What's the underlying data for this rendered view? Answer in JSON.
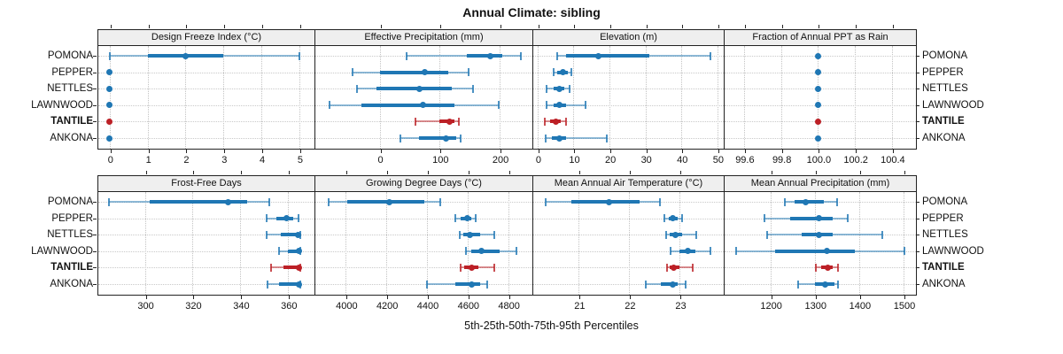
{
  "title": "Annual Climate: sibling",
  "caption": "5th-25th-50th-75th-95th Percentiles",
  "sites": [
    "POMONA",
    "PEPPER",
    "NETTLES",
    "LAWNWOOD",
    "TANTILE",
    "ANKONA"
  ],
  "highlight_site": "TANTILE",
  "colors": {
    "series": "#1f77b4",
    "highlight": "#bc2026",
    "strip_bg": "#efefef",
    "grid": "#c6c6c6",
    "border": "#222222"
  },
  "chart_data": {
    "type": "dotplot",
    "note": "trellis dot plot of 5th-25th-50th-75th-95th percentiles per site",
    "percentile_labels": [
      "5th",
      "25th",
      "50th",
      "75th",
      "95th"
    ],
    "rows": [
      "POMONA",
      "PEPPER",
      "NETTLES",
      "LAWNWOOD",
      "TANTILE",
      "ANKONA"
    ],
    "legend_position": "none",
    "grid": true,
    "panels": [
      {
        "title": "Design Freeze Index (°C)",
        "grid_row": 0,
        "grid_col": 0,
        "xlim": [
          -0.3,
          5.4
        ],
        "ticks": [
          0,
          1,
          2,
          3,
          4,
          5
        ],
        "tick_labels": [
          "0",
          "1",
          "2",
          "3",
          "4",
          "5"
        ],
        "values": {
          "POMONA": [
            0,
            1,
            2,
            3,
            5
          ],
          "PEPPER": [
            0,
            0,
            0,
            0,
            0
          ],
          "NETTLES": [
            0,
            0,
            0,
            0,
            0
          ],
          "LAWNWOOD": [
            0,
            0,
            0,
            0,
            0
          ],
          "TANTILE": [
            0,
            0,
            0,
            0,
            0
          ],
          "ANKONA": [
            0,
            0,
            0,
            0,
            0
          ]
        }
      },
      {
        "title": "Effective Precipitation (mm)",
        "grid_row": 0,
        "grid_col": 1,
        "xlim": [
          -107,
          253
        ],
        "ticks": [
          0,
          100,
          200
        ],
        "tick_labels": [
          "0",
          "100",
          "200"
        ],
        "values": {
          "POMONA": [
            45,
            145,
            185,
            205,
            235
          ],
          "PEPPER": [
            -45,
            0,
            75,
            115,
            148
          ],
          "NETTLES": [
            -37,
            -5,
            67,
            120,
            156
          ],
          "LAWNWOOD": [
            -84,
            -30,
            72,
            125,
            199
          ],
          "TANTILE": [
            59,
            100,
            116,
            124,
            132
          ],
          "ANKONA": [
            35,
            65,
            110,
            128,
            135
          ]
        }
      },
      {
        "title": "Elevation (m)",
        "grid_row": 0,
        "grid_col": 2,
        "xlim": [
          -1.2,
          51.5
        ],
        "ticks": [
          0,
          10,
          20,
          30,
          40,
          50
        ],
        "tick_labels": [
          "0",
          "10",
          "20",
          "30",
          "40",
          "50"
        ],
        "values": {
          "POMONA": [
            5.5,
            8,
            17,
            31,
            48
          ],
          "PEPPER": [
            4.4,
            5.5,
            7,
            8.5,
            9.5
          ],
          "NETTLES": [
            2.6,
            4.5,
            6,
            7.5,
            9
          ],
          "LAWNWOOD": [
            2.6,
            4.5,
            6,
            8,
            13.3
          ],
          "TANTILE": [
            2,
            3.5,
            5,
            6.5,
            8
          ],
          "ANKONA": [
            2.2,
            4,
            6,
            8,
            19.3
          ]
        }
      },
      {
        "title": "Fraction of Annual PPT as Rain",
        "grid_row": 0,
        "grid_col": 3,
        "xlim": [
          99.495,
          100.525
        ],
        "ticks": [
          99.6,
          99.8,
          100.0,
          100.2,
          100.4
        ],
        "tick_labels": [
          "99.6",
          "99.8",
          "100.0",
          "100.2",
          "100.4"
        ],
        "values": {
          "POMONA": [
            100,
            100,
            100,
            100,
            100
          ],
          "PEPPER": [
            100,
            100,
            100,
            100,
            100
          ],
          "NETTLES": [
            100,
            100,
            100,
            100,
            100
          ],
          "LAWNWOOD": [
            100,
            100,
            100,
            100,
            100
          ],
          "TANTILE": [
            100,
            100,
            100,
            100,
            100
          ],
          "ANKONA": [
            100,
            100,
            100,
            100,
            100
          ]
        }
      },
      {
        "title": "Frost-Free Days",
        "grid_row": 1,
        "grid_col": 0,
        "xlim": [
          280.5,
          371
        ],
        "ticks": [
          300,
          320,
          340,
          360
        ],
        "tick_labels": [
          "300",
          "320",
          "340",
          "360"
        ],
        "values": {
          "POMONA": [
            285,
            302,
            335,
            343,
            352
          ],
          "PEPPER": [
            351,
            355,
            359.5,
            362,
            364.5
          ],
          "NETTLES": [
            351,
            357,
            364,
            365,
            365
          ],
          "LAWNWOOD": [
            356,
            360,
            364.5,
            365,
            365
          ],
          "TANTILE": [
            353,
            358,
            364.5,
            365,
            365
          ],
          "ANKONA": [
            351.5,
            356,
            364.5,
            365,
            365
          ]
        }
      },
      {
        "title": "Growing Degree Days (°C)",
        "grid_row": 1,
        "grid_col": 1,
        "xlim": [
          3850,
          4915
        ],
        "ticks": [
          4000,
          4200,
          4400,
          4600,
          4800
        ],
        "tick_labels": [
          "4000",
          "4200",
          "4400",
          "4600",
          "4800"
        ],
        "values": {
          "POMONA": [
            3915,
            4005,
            4215,
            4385,
            4465
          ],
          "PEPPER": [
            4540,
            4565,
            4597,
            4618,
            4640
          ],
          "NETTLES": [
            4560,
            4580,
            4610,
            4660,
            4730
          ],
          "LAWNWOOD": [
            4590,
            4620,
            4670,
            4760,
            4840
          ],
          "TANTILE": [
            4565,
            4585,
            4620,
            4655,
            4730
          ],
          "ANKONA": [
            4400,
            4540,
            4620,
            4660,
            4695
          ]
        }
      },
      {
        "title": "Mean Annual Air Temperature (°C)",
        "grid_row": 1,
        "grid_col": 2,
        "xlim": [
          20.1,
          23.85
        ],
        "ticks": [
          21,
          22,
          23
        ],
        "tick_labels": [
          "21",
          "22",
          "23"
        ],
        "values": {
          "POMONA": [
            20.35,
            20.85,
            21.6,
            22.2,
            22.6
          ],
          "PEPPER": [
            22.7,
            22.78,
            22.86,
            22.95,
            23.04
          ],
          "NETTLES": [
            22.72,
            22.8,
            22.92,
            23.05,
            23.32
          ],
          "LAWNWOOD": [
            22.82,
            23.0,
            23.16,
            23.3,
            23.6
          ],
          "TANTILE": [
            22.74,
            22.8,
            22.88,
            23.0,
            23.26
          ],
          "ANKONA": [
            22.32,
            22.62,
            22.86,
            22.96,
            23.11
          ]
        }
      },
      {
        "title": "Mean Annual Precipitation (mm)",
        "grid_row": 1,
        "grid_col": 3,
        "xlim": [
          1097,
          1526
        ],
        "ticks": [
          1200,
          1300,
          1400,
          1500
        ],
        "tick_labels": [
          "1200",
          "1300",
          "1400",
          "1500"
        ],
        "values": {
          "POMONA": [
            1232,
            1255,
            1280,
            1320,
            1351
          ],
          "PEPPER": [
            1187,
            1245,
            1309,
            1340,
            1374
          ],
          "NETTLES": [
            1193,
            1270,
            1309,
            1340,
            1452
          ],
          "LAWNWOOD": [
            1122,
            1210,
            1327,
            1390,
            1503
          ],
          "TANTILE": [
            1302,
            1315,
            1329,
            1340,
            1352
          ],
          "ANKONA": [
            1263,
            1300,
            1324,
            1345,
            1353
          ]
        }
      }
    ]
  }
}
